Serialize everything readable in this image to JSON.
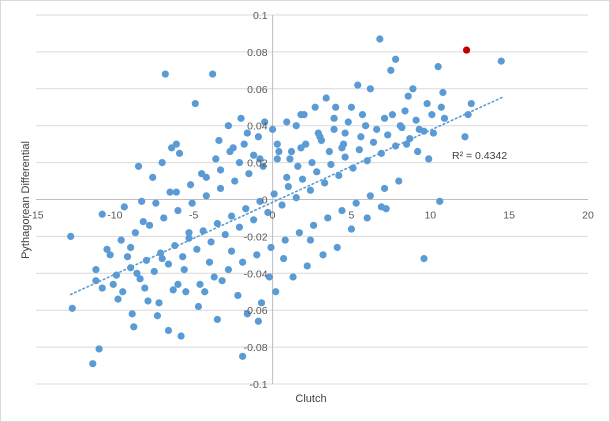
{
  "chart_data": {
    "type": "scatter",
    "title": "",
    "xlabel": "Clutch",
    "ylabel": "Pythagorean Differential",
    "xlim": [
      -15,
      20
    ],
    "ylim": [
      -0.1,
      0.1
    ],
    "x_ticks": [
      "-15",
      "-10",
      "-5",
      "0",
      "5",
      "10",
      "15",
      "20"
    ],
    "y_ticks": [
      "0.1",
      "0.08",
      "0.06",
      "0.04",
      "0.02",
      "0",
      "-0.02",
      "-0.04",
      "-0.06",
      "-0.08",
      "-0.1"
    ],
    "grid": "horizontal",
    "legend": "none",
    "colors": {
      "points": "#5b9bd5",
      "highlight": "#c00000",
      "trendline": "#5b9bd5",
      "grid": "#d9d9d9"
    },
    "trendline": {
      "type": "linear",
      "label": "R² = 0.4342",
      "x_range": [
        -12.8,
        14.6
      ],
      "y_start": -0.0515,
      "y_end": 0.0555
    },
    "highlight_point": {
      "x": 12.3,
      "y": 0.081
    },
    "series": [
      {
        "points": [
          [
            -12.8,
            -0.02
          ],
          [
            -12.7,
            -0.059
          ],
          [
            -11.4,
            -0.089
          ],
          [
            -11.0,
            -0.081
          ],
          [
            -11.2,
            -0.038
          ],
          [
            -10.8,
            -0.048
          ],
          [
            -10.5,
            -0.027
          ],
          [
            -10.1,
            -0.046
          ],
          [
            -9.8,
            -0.054
          ],
          [
            -9.5,
            -0.05
          ],
          [
            -9.2,
            -0.031
          ],
          [
            -8.9,
            -0.062
          ],
          [
            -8.8,
            -0.069
          ],
          [
            -8.6,
            -0.04
          ],
          [
            -8.5,
            0.018
          ],
          [
            -8.2,
            -0.012
          ],
          [
            -7.9,
            -0.055
          ],
          [
            -7.6,
            0.012
          ],
          [
            -7.3,
            -0.063
          ],
          [
            -7.0,
            -0.032
          ],
          [
            -6.8,
            0.068
          ],
          [
            -6.6,
            -0.071
          ],
          [
            -6.5,
            0.004
          ],
          [
            -6.3,
            -0.049
          ],
          [
            -6.1,
            0.03
          ],
          [
            -5.9,
            0.025
          ],
          [
            -5.8,
            -0.074
          ],
          [
            -5.6,
            -0.038
          ],
          [
            -5.3,
            -0.018
          ],
          [
            -4.9,
            0.052
          ],
          [
            -4.7,
            -0.058
          ],
          [
            -4.5,
            0.014
          ],
          [
            -4.3,
            -0.05
          ],
          [
            -3.8,
            0.068
          ],
          [
            -3.5,
            -0.065
          ],
          [
            -3.4,
            0.032
          ],
          [
            -3.2,
            -0.044
          ],
          [
            -2.8,
            0.04
          ],
          [
            -2.5,
            0.028
          ],
          [
            -2.2,
            -0.052
          ],
          [
            -1.9,
            -0.085
          ],
          [
            -1.6,
            0.036
          ],
          [
            -1.2,
            0.024
          ],
          [
            -0.9,
            -0.066
          ],
          [
            -0.5,
            0.042
          ],
          [
            -0.2,
            -0.042
          ],
          [
            0.3,
            0.03
          ],
          [
            0.7,
            -0.032
          ],
          [
            1.1,
            0.022
          ],
          [
            1.5,
            0.04
          ],
          [
            2.0,
            0.046
          ],
          [
            2.4,
            -0.022
          ],
          [
            2.9,
            0.036
          ],
          [
            3.4,
            0.055
          ],
          [
            3.9,
            0.044
          ],
          [
            4.4,
            0.028
          ],
          [
            5.0,
            0.05
          ],
          [
            5.4,
            0.062
          ],
          [
            6.2,
            0.06
          ],
          [
            6.8,
            0.087
          ],
          [
            7.2,
            -0.005
          ],
          [
            7.5,
            0.07
          ],
          [
            7.8,
            0.076
          ],
          [
            8.1,
            0.04
          ],
          [
            8.6,
            0.056
          ],
          [
            8.9,
            0.06
          ],
          [
            9.3,
            0.038
          ],
          [
            9.6,
            -0.032
          ],
          [
            9.9,
            0.022
          ],
          [
            10.2,
            0.036
          ],
          [
            10.5,
            0.072
          ],
          [
            10.6,
            -0.001
          ],
          [
            10.7,
            0.05
          ],
          [
            10.8,
            0.058
          ],
          [
            12.2,
            0.034
          ],
          [
            12.4,
            0.046
          ],
          [
            12.6,
            0.052
          ],
          [
            14.5,
            0.075
          ],
          [
            -10.8,
            -0.008
          ],
          [
            -9.4,
            -0.004
          ],
          [
            -8.3,
            -0.001
          ],
          [
            -7.4,
            -0.002
          ],
          [
            -6.1,
            0.004
          ],
          [
            -5.2,
            0.008
          ],
          [
            -4.2,
            0.012
          ],
          [
            -3.3,
            0.016
          ],
          [
            -2.1,
            0.02
          ],
          [
            -0.8,
            0.022
          ],
          [
            0.4,
            0.026
          ],
          [
            1.8,
            0.028
          ],
          [
            3.1,
            0.032
          ],
          [
            4.6,
            0.036
          ],
          [
            5.9,
            0.04
          ],
          [
            7.1,
            0.044
          ],
          [
            8.4,
            0.048
          ],
          [
            9.8,
            0.052
          ],
          [
            -9.9,
            -0.041
          ],
          [
            -9.0,
            -0.037
          ],
          [
            -8.0,
            -0.033
          ],
          [
            -7.1,
            -0.029
          ],
          [
            -6.2,
            -0.025
          ],
          [
            -5.3,
            -0.021
          ],
          [
            -4.4,
            -0.017
          ],
          [
            -3.5,
            -0.013
          ],
          [
            -2.6,
            -0.009
          ],
          [
            -1.7,
            -0.005
          ],
          [
            -0.8,
            -0.001
          ],
          [
            0.1,
            0.003
          ],
          [
            1.0,
            0.007
          ],
          [
            1.9,
            0.011
          ],
          [
            2.8,
            0.015
          ],
          [
            3.7,
            0.019
          ],
          [
            4.6,
            0.023
          ],
          [
            5.5,
            0.027
          ],
          [
            6.4,
            0.031
          ],
          [
            7.3,
            0.035
          ],
          [
            8.2,
            0.039
          ],
          [
            9.1,
            0.043
          ],
          [
            -9.6,
            -0.022
          ],
          [
            -8.7,
            -0.018
          ],
          [
            -7.8,
            -0.014
          ],
          [
            -6.9,
            -0.01
          ],
          [
            -6.0,
            -0.006
          ],
          [
            -5.1,
            -0.002
          ],
          [
            -4.2,
            0.002
          ],
          [
            -3.3,
            0.006
          ],
          [
            -2.4,
            0.01
          ],
          [
            -1.5,
            0.014
          ],
          [
            -0.6,
            0.018
          ],
          [
            0.3,
            0.022
          ],
          [
            1.2,
            0.026
          ],
          [
            2.1,
            0.03
          ],
          [
            3.0,
            0.034
          ],
          [
            3.9,
            0.038
          ],
          [
            4.8,
            0.042
          ],
          [
            5.7,
            0.046
          ],
          [
            -8.4,
            -0.043
          ],
          [
            -7.5,
            -0.039
          ],
          [
            -6.6,
            -0.035
          ],
          [
            -5.7,
            -0.031
          ],
          [
            -4.8,
            -0.027
          ],
          [
            -3.9,
            -0.023
          ],
          [
            -3.0,
            -0.019
          ],
          [
            -2.1,
            -0.015
          ],
          [
            -1.2,
            -0.011
          ],
          [
            -0.3,
            -0.007
          ],
          [
            0.6,
            -0.003
          ],
          [
            1.5,
            0.001
          ],
          [
            2.4,
            0.005
          ],
          [
            3.3,
            0.009
          ],
          [
            4.2,
            0.013
          ],
          [
            5.1,
            0.017
          ],
          [
            6.0,
            0.021
          ],
          [
            6.9,
            0.025
          ],
          [
            7.8,
            0.029
          ],
          [
            8.7,
            0.033
          ],
          [
            9.6,
            0.037
          ],
          [
            -5.5,
            -0.05
          ],
          [
            -4.6,
            -0.046
          ],
          [
            -3.7,
            -0.042
          ],
          [
            -2.8,
            -0.038
          ],
          [
            -1.9,
            -0.034
          ],
          [
            -1.0,
            -0.03
          ],
          [
            -0.1,
            -0.026
          ],
          [
            0.8,
            -0.022
          ],
          [
            1.7,
            -0.018
          ],
          [
            2.6,
            -0.014
          ],
          [
            3.5,
            -0.01
          ],
          [
            4.4,
            -0.006
          ],
          [
            5.3,
            -0.002
          ],
          [
            6.2,
            0.002
          ],
          [
            7.1,
            0.006
          ],
          [
            8.0,
            0.01
          ],
          [
            -3.6,
            0.022
          ],
          [
            -2.7,
            0.026
          ],
          [
            -1.8,
            0.03
          ],
          [
            -0.9,
            0.034
          ],
          [
            0.0,
            0.038
          ],
          [
            0.9,
            0.042
          ],
          [
            1.8,
            0.046
          ],
          [
            2.7,
            0.05
          ],
          [
            -7.0,
            0.02
          ],
          [
            -6.4,
            0.028
          ],
          [
            -2.0,
            0.044
          ],
          [
            4.0,
            0.05
          ],
          [
            2.2,
            -0.036
          ],
          [
            3.2,
            -0.03
          ],
          [
            4.1,
            -0.026
          ],
          [
            1.3,
            -0.042
          ],
          [
            0.2,
            -0.05
          ],
          [
            -0.7,
            -0.056
          ],
          [
            -1.6,
            -0.062
          ],
          [
            5.0,
            -0.016
          ],
          [
            6.0,
            -0.01
          ],
          [
            6.9,
            -0.004
          ],
          [
            -11.2,
            -0.044
          ],
          [
            -10.3,
            -0.03
          ],
          [
            -9.0,
            -0.026
          ],
          [
            -8.1,
            -0.048
          ],
          [
            -7.2,
            -0.056
          ],
          [
            -6.0,
            -0.046
          ],
          [
            -4.0,
            -0.034
          ],
          [
            -2.6,
            -0.028
          ],
          [
            0.9,
            0.012
          ],
          [
            1.6,
            0.018
          ],
          [
            2.5,
            0.02
          ],
          [
            3.6,
            0.026
          ],
          [
            4.5,
            0.03
          ],
          [
            5.6,
            0.034
          ],
          [
            6.6,
            0.038
          ],
          [
            7.6,
            0.046
          ],
          [
            8.5,
            0.03
          ],
          [
            9.2,
            0.026
          ],
          [
            10.1,
            0.046
          ],
          [
            10.9,
            0.044
          ]
        ]
      }
    ]
  }
}
